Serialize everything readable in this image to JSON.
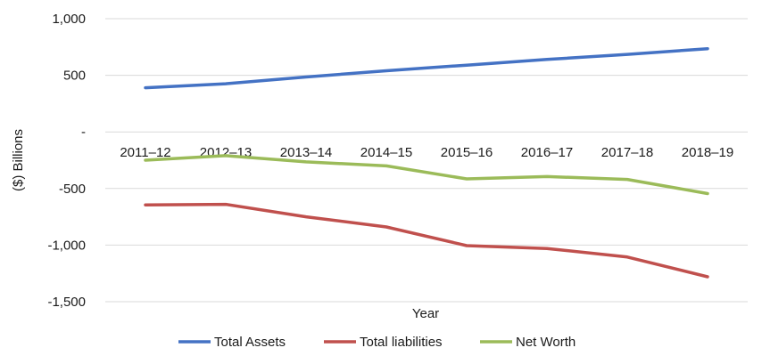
{
  "chart_data": {
    "type": "line",
    "title": "",
    "xlabel": "Year",
    "ylabel": "($) Billions",
    "ylim": [
      -1500,
      1000
    ],
    "yticks": [
      {
        "value": 1000,
        "label": "1,000"
      },
      {
        "value": 500,
        "label": "500"
      },
      {
        "value": 0,
        "label": "-"
      },
      {
        "value": -500,
        "label": "-500"
      },
      {
        "value": -1000,
        "label": "-1,000"
      },
      {
        "value": -1500,
        "label": "-1,500"
      }
    ],
    "categories": [
      "2011–12",
      "2012–13",
      "2013–14",
      "2014–15",
      "2015–16",
      "2016–17",
      "2017–18",
      "2018–19"
    ],
    "grid": true,
    "legend_position": "bottom",
    "series": [
      {
        "name": "Total Assets",
        "color": "#4472C4",
        "values": [
          390,
          425,
          485,
          540,
          590,
          640,
          685,
          735
        ]
      },
      {
        "name": "Total liabilities",
        "color": "#C0504D",
        "values": [
          -645,
          -640,
          -750,
          -840,
          -1005,
          -1030,
          -1105,
          -1280
        ]
      },
      {
        "name": "Net Worth",
        "color": "#9BBB59",
        "values": [
          -250,
          -210,
          -265,
          -300,
          -415,
          -395,
          -420,
          -545
        ]
      }
    ]
  }
}
